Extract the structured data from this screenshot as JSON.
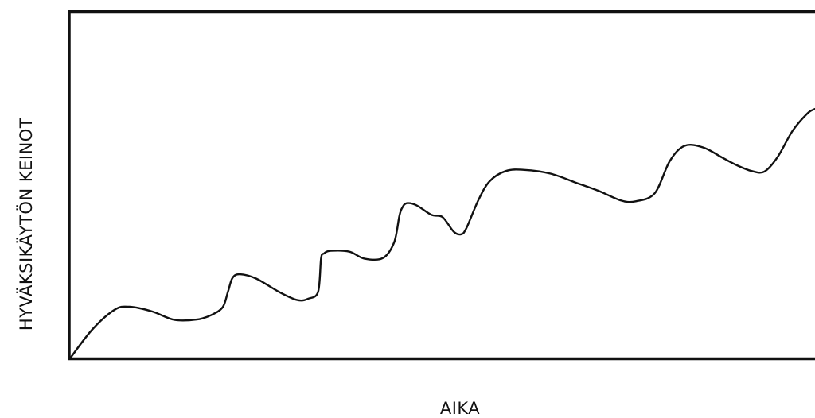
{
  "chart_data": {
    "type": "line",
    "title": "",
    "xlabel": "AIKA",
    "ylabel": "HYVÄKSIKÄYTÖN KEINOT",
    "grid": false,
    "legend": "none",
    "xlim": [
      0,
      100
    ],
    "ylim": [
      0,
      100
    ],
    "series": [
      {
        "color": "#111111",
        "x": [
          0,
          3,
          6,
          8,
          11,
          14,
          17,
          19,
          20.5,
          21.2,
          21.8,
          22.8,
          25,
          28,
          30.5,
          32,
          33.3,
          33.7,
          34.1,
          35,
          37.5,
          39.5,
          42,
          43.5,
          44.2,
          44.6,
          45.2,
          46.5,
          48.5,
          50,
          51.5,
          52.5,
          53.2,
          54.8,
          56.3,
          58.5,
          61,
          64.5,
          68,
          71,
          74,
          76,
          78.5,
          80.5,
          82.5,
          85,
          87.5,
          89.5,
          91.5,
          93.2,
          95,
          97,
          99,
          100
        ],
        "y": [
          0,
          10,
          16.8,
          17.8,
          16.2,
          13.3,
          13.4,
          15,
          17.7,
          23,
          27.7,
          29,
          27.5,
          23,
          20.1,
          20.6,
          23,
          34.5,
          36.2,
          37.1,
          36.8,
          34.4,
          34.6,
          40,
          49,
          52,
          53.5,
          52.8,
          49.5,
          48.7,
          43.7,
          42.8,
          44.9,
          54.5,
          61,
          64.6,
          65,
          63.7,
          60.5,
          57.7,
          54.4,
          54.2,
          57,
          68,
          73.3,
          72.7,
          69.3,
          66.6,
          64.6,
          64.4,
          69.5,
          78.5,
          84.5,
          86
        ]
      }
    ]
  }
}
